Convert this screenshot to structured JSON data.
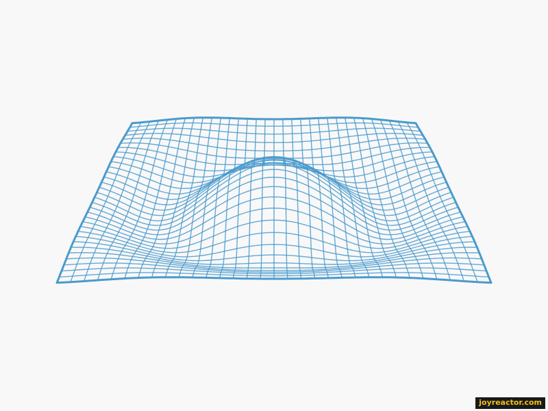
{
  "wireframe": {
    "stroke_color": "#4a9acc",
    "background_color": "#f8f8f8"
  },
  "watermark": {
    "text": "joyreactor.com",
    "text_color": "#f0c020",
    "background_color": "#1a1a1a"
  }
}
